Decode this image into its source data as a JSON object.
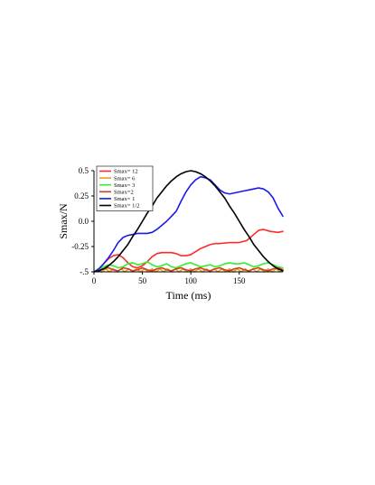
{
  "chart_data": {
    "type": "line",
    "title": "",
    "xlabel": "Time (ms)",
    "ylabel": "Smax/N",
    "xlim": [
      0,
      195
    ],
    "ylim": [
      -0.5,
      0.5
    ],
    "x_ticks": [
      0,
      50,
      100,
      150
    ],
    "x_tick_labels": [
      "0",
      "50",
      "100",
      "150"
    ],
    "y_ticks": [
      -0.5,
      -0.25,
      0.0,
      0.25,
      0.5
    ],
    "y_tick_labels": [
      "-.5",
      "-0.25",
      "0.0",
      "0.25",
      "0.5"
    ],
    "grid": false,
    "legend_position": "top-left",
    "series": [
      {
        "name": "Smax= 12",
        "color": "#ff2a2a",
        "points": [
          [
            0,
            -0.5
          ],
          [
            5,
            -0.47
          ],
          [
            10,
            -0.42
          ],
          [
            15,
            -0.37
          ],
          [
            20,
            -0.34
          ],
          [
            25,
            -0.33
          ],
          [
            30,
            -0.36
          ],
          [
            35,
            -0.41
          ],
          [
            40,
            -0.45
          ],
          [
            45,
            -0.46
          ],
          [
            50,
            -0.44
          ],
          [
            55,
            -0.4
          ],
          [
            60,
            -0.35
          ],
          [
            65,
            -0.32
          ],
          [
            70,
            -0.31
          ],
          [
            80,
            -0.31
          ],
          [
            85,
            -0.32
          ],
          [
            90,
            -0.34
          ],
          [
            95,
            -0.34
          ],
          [
            100,
            -0.33
          ],
          [
            105,
            -0.3
          ],
          [
            110,
            -0.27
          ],
          [
            115,
            -0.25
          ],
          [
            120,
            -0.23
          ],
          [
            125,
            -0.22
          ],
          [
            130,
            -0.22
          ],
          [
            140,
            -0.21
          ],
          [
            150,
            -0.21
          ],
          [
            158,
            -0.19
          ],
          [
            165,
            -0.13
          ],
          [
            170,
            -0.09
          ],
          [
            175,
            -0.08
          ],
          [
            182,
            -0.1
          ],
          [
            190,
            -0.11
          ],
          [
            195,
            -0.1
          ]
        ]
      },
      {
        "name": "Smax= 6",
        "color": "#e8a020",
        "points": [
          [
            0,
            -0.5
          ],
          [
            4,
            -0.48
          ],
          [
            8,
            -0.5
          ],
          [
            12,
            -0.47
          ],
          [
            16,
            -0.5
          ],
          [
            20,
            -0.47
          ],
          [
            24,
            -0.5
          ],
          [
            28,
            -0.47
          ],
          [
            32,
            -0.5
          ],
          [
            36,
            -0.47
          ],
          [
            40,
            -0.5
          ],
          [
            44,
            -0.47
          ],
          [
            48,
            -0.5
          ],
          [
            52,
            -0.47
          ],
          [
            56,
            -0.5
          ],
          [
            60,
            -0.47
          ],
          [
            64,
            -0.5
          ],
          [
            68,
            -0.47
          ],
          [
            72,
            -0.5
          ],
          [
            76,
            -0.47
          ],
          [
            80,
            -0.5
          ],
          [
            84,
            -0.47
          ],
          [
            88,
            -0.5
          ],
          [
            92,
            -0.47
          ],
          [
            96,
            -0.5
          ],
          [
            100,
            -0.47
          ],
          [
            104,
            -0.5
          ],
          [
            108,
            -0.47
          ],
          [
            112,
            -0.5
          ],
          [
            116,
            -0.47
          ],
          [
            120,
            -0.5
          ],
          [
            124,
            -0.47
          ],
          [
            128,
            -0.5
          ],
          [
            132,
            -0.47
          ],
          [
            136,
            -0.5
          ],
          [
            140,
            -0.47
          ],
          [
            144,
            -0.5
          ],
          [
            148,
            -0.47
          ],
          [
            152,
            -0.5
          ],
          [
            156,
            -0.47
          ],
          [
            160,
            -0.5
          ],
          [
            164,
            -0.47
          ],
          [
            168,
            -0.5
          ],
          [
            172,
            -0.47
          ],
          [
            176,
            -0.5
          ],
          [
            180,
            -0.47
          ],
          [
            184,
            -0.5
          ],
          [
            188,
            -0.47
          ],
          [
            192,
            -0.5
          ],
          [
            195,
            -0.48
          ]
        ]
      },
      {
        "name": "Smax= 3",
        "color": "#33ee33",
        "points": [
          [
            0,
            -0.5
          ],
          [
            5,
            -0.48
          ],
          [
            10,
            -0.45
          ],
          [
            15,
            -0.43
          ],
          [
            20,
            -0.44
          ],
          [
            25,
            -0.46
          ],
          [
            30,
            -0.45
          ],
          [
            35,
            -0.42
          ],
          [
            40,
            -0.41
          ],
          [
            45,
            -0.43
          ],
          [
            50,
            -0.42
          ],
          [
            55,
            -0.4
          ],
          [
            60,
            -0.43
          ],
          [
            65,
            -0.45
          ],
          [
            70,
            -0.44
          ],
          [
            75,
            -0.42
          ],
          [
            80,
            -0.45
          ],
          [
            85,
            -0.46
          ],
          [
            90,
            -0.44
          ],
          [
            95,
            -0.42
          ],
          [
            100,
            -0.41
          ],
          [
            105,
            -0.43
          ],
          [
            110,
            -0.45
          ],
          [
            115,
            -0.44
          ],
          [
            120,
            -0.43
          ],
          [
            125,
            -0.45
          ],
          [
            130,
            -0.44
          ],
          [
            135,
            -0.42
          ],
          [
            140,
            -0.41
          ],
          [
            145,
            -0.42
          ],
          [
            150,
            -0.42
          ],
          [
            155,
            -0.41
          ],
          [
            160,
            -0.43
          ],
          [
            165,
            -0.45
          ],
          [
            170,
            -0.44
          ],
          [
            175,
            -0.42
          ],
          [
            180,
            -0.41
          ],
          [
            185,
            -0.43
          ],
          [
            190,
            -0.45
          ],
          [
            195,
            -0.46
          ]
        ]
      },
      {
        "name": "Smax=2",
        "color": "#c84020",
        "points": [
          [
            0,
            -0.5
          ],
          [
            5,
            -0.49
          ],
          [
            10,
            -0.47
          ],
          [
            15,
            -0.46
          ],
          [
            20,
            -0.48
          ],
          [
            25,
            -0.49
          ],
          [
            30,
            -0.46
          ],
          [
            35,
            -0.47
          ],
          [
            40,
            -0.49
          ],
          [
            45,
            -0.48
          ],
          [
            50,
            -0.46
          ],
          [
            55,
            -0.48
          ],
          [
            60,
            -0.49
          ],
          [
            65,
            -0.47
          ],
          [
            70,
            -0.46
          ],
          [
            75,
            -0.48
          ],
          [
            80,
            -0.49
          ],
          [
            85,
            -0.47
          ],
          [
            90,
            -0.46
          ],
          [
            95,
            -0.48
          ],
          [
            100,
            -0.49
          ],
          [
            105,
            -0.47
          ],
          [
            110,
            -0.46
          ],
          [
            115,
            -0.48
          ],
          [
            120,
            -0.49
          ],
          [
            125,
            -0.47
          ],
          [
            130,
            -0.46
          ],
          [
            135,
            -0.48
          ],
          [
            140,
            -0.49
          ],
          [
            145,
            -0.47
          ],
          [
            150,
            -0.46
          ],
          [
            155,
            -0.48
          ],
          [
            160,
            -0.49
          ],
          [
            165,
            -0.47
          ],
          [
            170,
            -0.46
          ],
          [
            175,
            -0.48
          ],
          [
            180,
            -0.49
          ],
          [
            185,
            -0.47
          ],
          [
            190,
            -0.46
          ],
          [
            195,
            -0.48
          ]
        ]
      },
      {
        "name": "Smax= 1",
        "color": "#1a1aee",
        "points": [
          [
            0,
            -0.5
          ],
          [
            5,
            -0.47
          ],
          [
            10,
            -0.42
          ],
          [
            15,
            -0.36
          ],
          [
            20,
            -0.29
          ],
          [
            25,
            -0.21
          ],
          [
            30,
            -0.16
          ],
          [
            35,
            -0.14
          ],
          [
            40,
            -0.13
          ],
          [
            45,
            -0.12
          ],
          [
            50,
            -0.12
          ],
          [
            55,
            -0.12
          ],
          [
            60,
            -0.11
          ],
          [
            65,
            -0.08
          ],
          [
            70,
            -0.04
          ],
          [
            75,
            0.0
          ],
          [
            80,
            0.05
          ],
          [
            85,
            0.1
          ],
          [
            90,
            0.2
          ],
          [
            95,
            0.29
          ],
          [
            100,
            0.36
          ],
          [
            105,
            0.41
          ],
          [
            110,
            0.44
          ],
          [
            115,
            0.43
          ],
          [
            120,
            0.41
          ],
          [
            125,
            0.36
          ],
          [
            130,
            0.31
          ],
          [
            135,
            0.28
          ],
          [
            140,
            0.27
          ],
          [
            145,
            0.28
          ],
          [
            150,
            0.29
          ],
          [
            155,
            0.3
          ],
          [
            160,
            0.31
          ],
          [
            165,
            0.32
          ],
          [
            170,
            0.33
          ],
          [
            175,
            0.32
          ],
          [
            180,
            0.29
          ],
          [
            185,
            0.23
          ],
          [
            190,
            0.13
          ],
          [
            195,
            0.05
          ]
        ]
      },
      {
        "name": "Smax= 1/2",
        "color": "#000000",
        "points": [
          [
            0,
            -0.5
          ],
          [
            5,
            -0.49
          ],
          [
            10,
            -0.47
          ],
          [
            15,
            -0.44
          ],
          [
            20,
            -0.4
          ],
          [
            25,
            -0.35
          ],
          [
            30,
            -0.29
          ],
          [
            35,
            -0.23
          ],
          [
            40,
            -0.15
          ],
          [
            45,
            -0.08
          ],
          [
            50,
            0.0
          ],
          [
            55,
            0.08
          ],
          [
            60,
            0.15
          ],
          [
            65,
            0.23
          ],
          [
            70,
            0.29
          ],
          [
            75,
            0.35
          ],
          [
            80,
            0.4
          ],
          [
            85,
            0.44
          ],
          [
            90,
            0.47
          ],
          [
            95,
            0.49
          ],
          [
            100,
            0.5
          ],
          [
            105,
            0.49
          ],
          [
            110,
            0.47
          ],
          [
            115,
            0.44
          ],
          [
            120,
            0.4
          ],
          [
            125,
            0.35
          ],
          [
            130,
            0.29
          ],
          [
            135,
            0.23
          ],
          [
            140,
            0.15
          ],
          [
            145,
            0.08
          ],
          [
            150,
            0.0
          ],
          [
            155,
            -0.08
          ],
          [
            160,
            -0.15
          ],
          [
            165,
            -0.23
          ],
          [
            170,
            -0.29
          ],
          [
            175,
            -0.35
          ],
          [
            180,
            -0.4
          ],
          [
            185,
            -0.44
          ],
          [
            190,
            -0.47
          ],
          [
            195,
            -0.49
          ]
        ]
      }
    ]
  }
}
